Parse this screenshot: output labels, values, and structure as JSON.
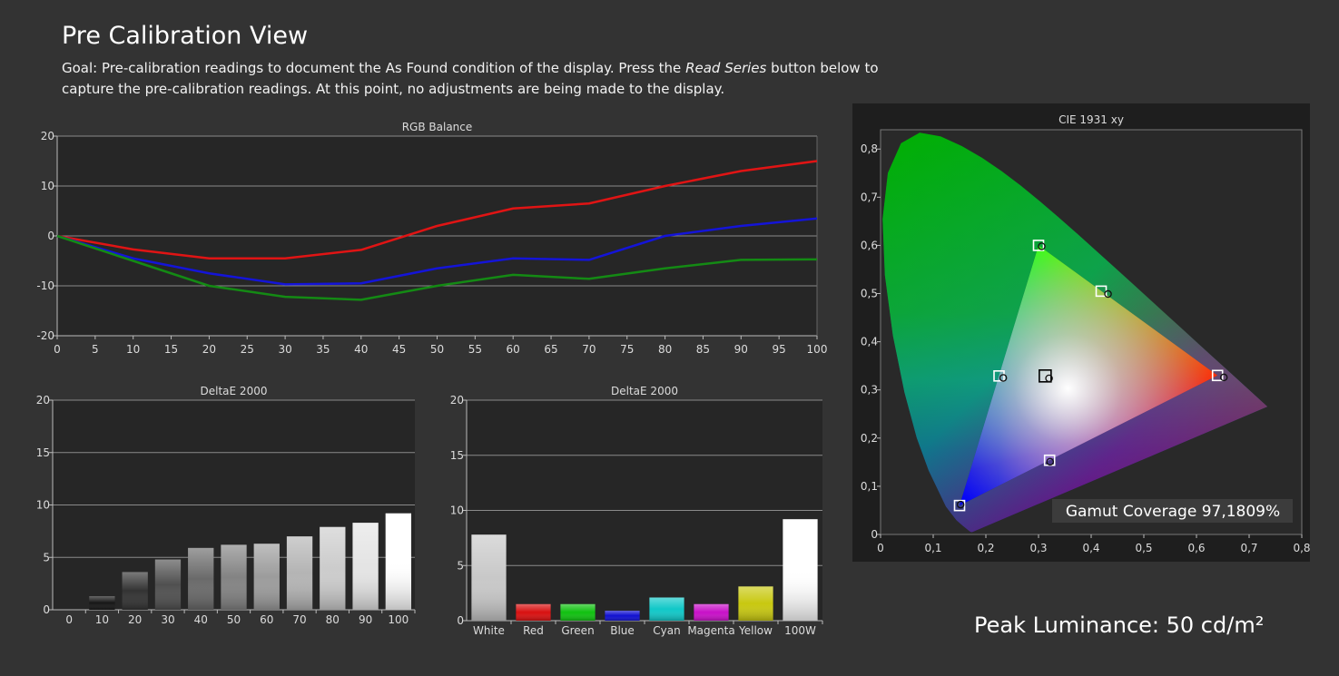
{
  "page": {
    "title": "Pre Calibration View",
    "goal_pre": "Goal: Pre-calibration readings to document the As Found condition of the display. Press the ",
    "goal_em": "Read Series",
    "goal_post": " button below to capture the pre-calibration readings. At this point, no adjustments are being made to the display.",
    "peak_luminance": "Peak Luminance: 50 cd/m²"
  },
  "chart_data": [
    {
      "id": "rgb",
      "type": "line",
      "title": "RGB Balance",
      "x": [
        0,
        10,
        20,
        30,
        40,
        50,
        60,
        70,
        80,
        90,
        100
      ],
      "xticks": [
        0,
        5,
        10,
        15,
        20,
        25,
        30,
        35,
        40,
        45,
        50,
        55,
        60,
        65,
        70,
        75,
        80,
        85,
        90,
        95,
        100
      ],
      "xlim": [
        0,
        100
      ],
      "ylim": [
        -20,
        20
      ],
      "yticks": [
        20,
        10,
        0,
        -10,
        -20
      ],
      "grid": true,
      "series": [
        {
          "color": "#e01414",
          "values": [
            0,
            -2.7,
            -4.5,
            -4.5,
            -2.8,
            2.0,
            5.5,
            6.5,
            10.0,
            13.0,
            15.0
          ]
        },
        {
          "color": "#1414d8",
          "values": [
            0,
            -4.5,
            -7.5,
            -9.7,
            -9.5,
            -6.5,
            -4.5,
            -4.8,
            0.0,
            2.0,
            3.5
          ]
        },
        {
          "color": "#148a14",
          "values": [
            0,
            -5.0,
            -10.0,
            -12.2,
            -12.8,
            -10.0,
            -7.8,
            -8.6,
            -6.5,
            -4.8,
            -4.7
          ]
        }
      ]
    },
    {
      "id": "de_gray",
      "type": "bar",
      "title": "DeltaE 2000",
      "categories": [
        "0",
        "10",
        "20",
        "30",
        "40",
        "50",
        "60",
        "70",
        "80",
        "90",
        "100"
      ],
      "values": [
        0,
        1.3,
        3.6,
        4.8,
        5.9,
        6.2,
        6.3,
        7.0,
        7.9,
        8.3,
        9.2
      ],
      "colors": [
        "#000000",
        "#161616",
        "#333333",
        "#505050",
        "#6a6a6a",
        "#838383",
        "#9c9c9c",
        "#b4b4b4",
        "#cccccc",
        "#e4e4e4",
        "#ffffff"
      ],
      "ylim": [
        0,
        20
      ],
      "yticks": [
        20,
        15,
        10,
        5,
        0
      ],
      "grid": true
    },
    {
      "id": "de_color",
      "type": "bar",
      "title": "DeltaE 2000",
      "categories": [
        "White",
        "Red",
        "Green",
        "Blue",
        "Cyan",
        "Magenta",
        "Yellow",
        "100W"
      ],
      "values": [
        7.8,
        1.5,
        1.5,
        0.9,
        2.1,
        1.5,
        3.1,
        9.2
      ],
      "colors": [
        "#c8c8c8",
        "#d81010",
        "#10c010",
        "#1010d0",
        "#10c8c8",
        "#c810c8",
        "#c8c810",
        "#ffffff"
      ],
      "ylim": [
        0,
        20
      ],
      "yticks": [
        20,
        15,
        10,
        5,
        0
      ],
      "grid": true
    },
    {
      "id": "cie",
      "type": "scatter",
      "title": "CIE 1931 xy",
      "xlim": [
        0,
        0.8
      ],
      "ylim": [
        0,
        0.84
      ],
      "xticks": [
        "0",
        "0,1",
        "0,2",
        "0,3",
        "0,4",
        "0,5",
        "0,6",
        "0,7",
        "0,8"
      ],
      "yticks": [
        "0",
        "0,1",
        "0,2",
        "0,3",
        "0,4",
        "0,5",
        "0,6",
        "0,7",
        "0,8"
      ],
      "grid": false,
      "gamut_coverage": "Gamut Coverage 97,1809%",
      "targets": [
        {
          "name": "Red",
          "x": 0.64,
          "y": 0.33
        },
        {
          "name": "Green",
          "x": 0.3,
          "y": 0.6
        },
        {
          "name": "Blue",
          "x": 0.15,
          "y": 0.06
        },
        {
          "name": "Yellow",
          "x": 0.419,
          "y": 0.505
        },
        {
          "name": "Cyan",
          "x": 0.225,
          "y": 0.329
        },
        {
          "name": "Magenta",
          "x": 0.321,
          "y": 0.154
        },
        {
          "name": "White",
          "x": 0.3127,
          "y": 0.329
        }
      ],
      "measured": [
        {
          "name": "Red",
          "x": 0.652,
          "y": 0.326
        },
        {
          "name": "Green",
          "x": 0.306,
          "y": 0.598
        },
        {
          "name": "Blue",
          "x": 0.152,
          "y": 0.062
        },
        {
          "name": "Yellow",
          "x": 0.432,
          "y": 0.499
        },
        {
          "name": "Cyan",
          "x": 0.233,
          "y": 0.325
        },
        {
          "name": "Magenta",
          "x": 0.322,
          "y": 0.151
        },
        {
          "name": "White",
          "x": 0.32,
          "y": 0.324
        }
      ]
    }
  ]
}
